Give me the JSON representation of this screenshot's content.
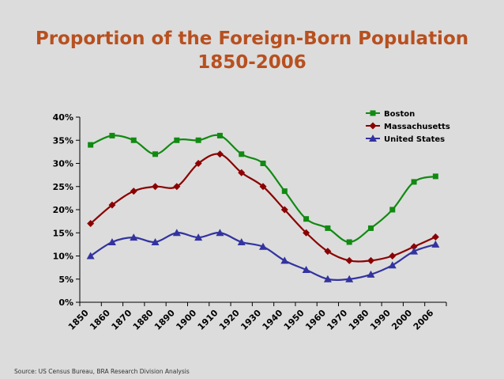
{
  "chart_data": {
    "type": "line",
    "title_line1": "Proportion of the Foreign-Born Population",
    "title_line2": "1850-2006",
    "x": [
      "1850",
      "1860",
      "1870",
      "1880",
      "1890",
      "1900",
      "1910",
      "1920",
      "1930",
      "1940",
      "1950",
      "1960",
      "1970",
      "1980",
      "1990",
      "2000",
      "2006"
    ],
    "y_ticks": [
      "0%",
      "5%",
      "10%",
      "15%",
      "20%",
      "25%",
      "30%",
      "35%",
      "40%"
    ],
    "ylim": [
      0,
      40
    ],
    "grid": false,
    "legend_position": "top-right",
    "series": [
      {
        "name": "Boston",
        "color": "#118a11",
        "marker": "square",
        "values": [
          34,
          36,
          35,
          32,
          35,
          35,
          36,
          32,
          30,
          24,
          18,
          16,
          13,
          16,
          20,
          26,
          27.2
        ]
      },
      {
        "name": "Massachusetts",
        "color": "#8b0000",
        "marker": "diamond",
        "values": [
          17,
          21,
          24,
          25,
          25,
          30,
          32,
          28,
          25,
          20,
          15,
          11,
          9,
          9,
          10,
          12,
          14.1
        ]
      },
      {
        "name": "United States",
        "color": "#3333a0",
        "marker": "triangle",
        "values": [
          10,
          13,
          14,
          13,
          15,
          14,
          15,
          13,
          12,
          9,
          7,
          5,
          5,
          6,
          8,
          11,
          12.5
        ]
      }
    ]
  },
  "source": "Source: US Census Bureau, BRA Research Division Analysis"
}
